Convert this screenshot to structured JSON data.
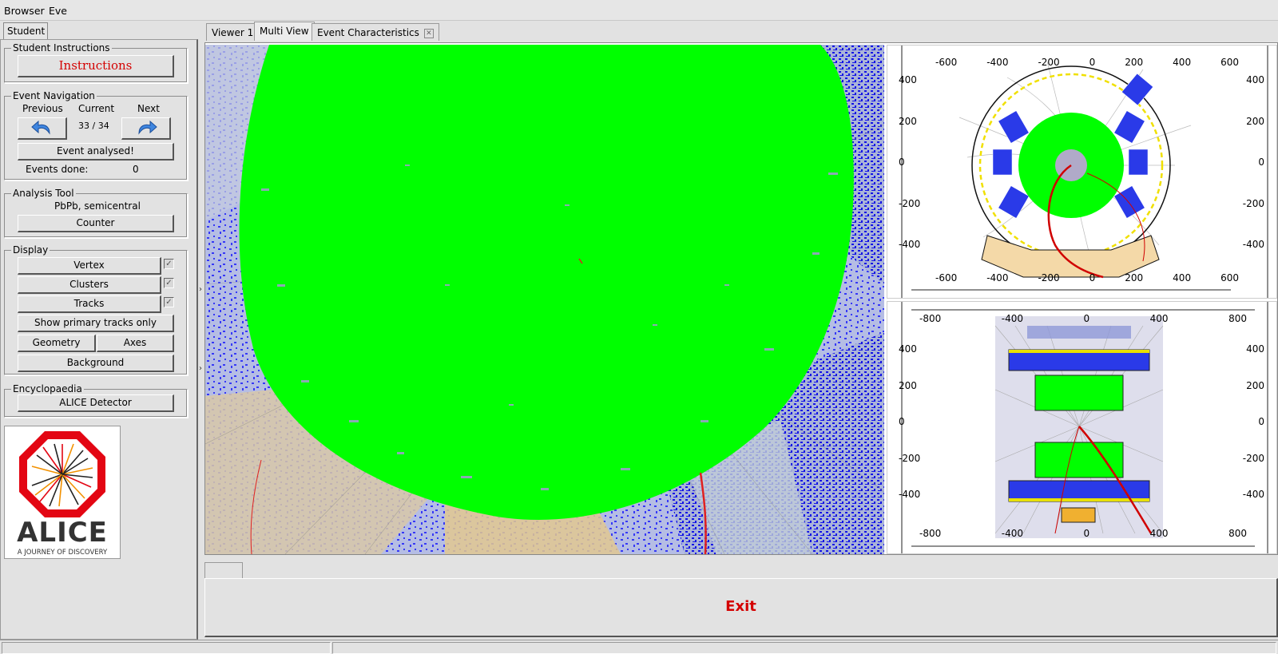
{
  "menu": {
    "browser_label": "Browser",
    "eve_label": "Eve"
  },
  "left_tab": {
    "label": "Student"
  },
  "student_instructions": {
    "group_title": "Student Instructions",
    "button_label": "Instructions"
  },
  "event_navigation": {
    "group_title": "Event Navigation",
    "previous_label": "Previous",
    "current_label": "Current",
    "next_label": "Next",
    "counter": "33 / 34",
    "analysed_label": "Event analysed!",
    "events_done_label": "Events done:",
    "events_done_value": "0"
  },
  "analysis_tool": {
    "group_title": "Analysis Tool",
    "mode": "PbPb, semicentral",
    "counter_label": "Counter"
  },
  "display": {
    "group_title": "Display",
    "vertex_label": "Vertex",
    "clusters_label": "Clusters",
    "tracks_label": "Tracks",
    "primary_label": "Show primary tracks only",
    "geometry_label": "Geometry",
    "axes_label": "Axes",
    "background_label": "Background"
  },
  "encyclopaedia": {
    "group_title": "Encyclopaedia",
    "detector_label": "ALICE Detector"
  },
  "logo": {
    "name": "ALICE",
    "tagline": "A JOURNEY OF DISCOVERY"
  },
  "viewer_tabs": {
    "tab1": "Viewer 1",
    "tab2": "Multi View",
    "tab3": "Event Characteristics"
  },
  "rphi_view": {
    "x_ticks_top": [
      "-600",
      "-400",
      "-200",
      "0",
      "200",
      "400",
      "600"
    ],
    "x_ticks_bottom": [
      "-600",
      "-400",
      "-200",
      "0",
      "200",
      "400",
      "600"
    ],
    "y_ticks_left": [
      "400",
      "200",
      "0",
      "-200",
      "-400"
    ],
    "y_ticks_right": [
      "400",
      "200",
      "0",
      "-200",
      "-400"
    ]
  },
  "rhoz_view": {
    "x_ticks_top": [
      "-800",
      "-400",
      "0",
      "400",
      "800"
    ],
    "x_ticks_bottom": [
      "-800",
      "-400",
      "0",
      "400",
      "800"
    ],
    "y_ticks_left": [
      "400",
      "200",
      "0",
      "-200",
      "-400"
    ],
    "y_ticks_right": [
      "400",
      "200",
      "0",
      "-200",
      "-400"
    ]
  },
  "exit": {
    "label": "Exit"
  },
  "colors": {
    "track_green": "#00ff00",
    "cluster_blue": "#1a1aff",
    "exit_red": "#d40000"
  }
}
